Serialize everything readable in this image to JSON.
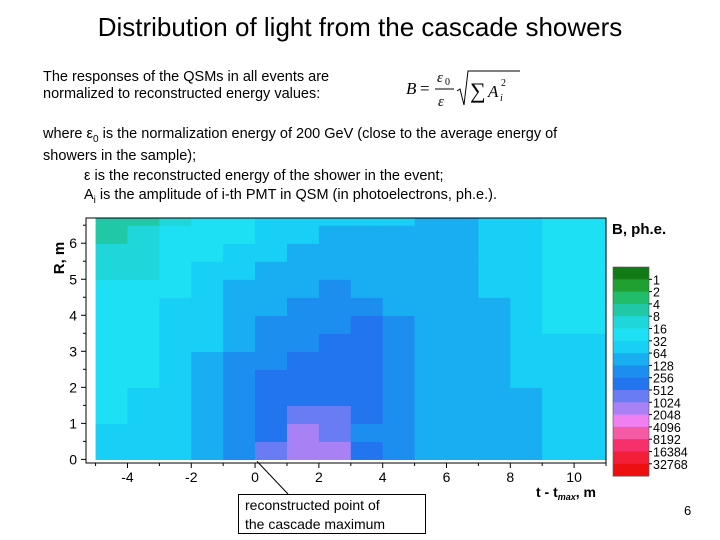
{
  "slide": {
    "title": "Distribution of light from the cascade showers",
    "intro_line1": "The responses of the QSMs in all events are",
    "intro_line2": "normalized to reconstructed energy values:",
    "formula": {
      "lhs": "B",
      "equals": "=",
      "numerator": "ε",
      "numerator_sub": "0",
      "denominator": "ε",
      "sum_symbol": "∑",
      "term": "A",
      "term_sub": "i",
      "term_sup": "2"
    },
    "where_line1_a": "where ε",
    "where_line1_sub": "0",
    "where_line1_b": " is the normalization energy of 200 GeV (close to the average energy of",
    "where_line2": "showers in the sample);",
    "epsilon_def": "ε is the reconstructed energy of the shower in the event;",
    "amp_def_a": "A",
    "amp_def_sub": "i",
    "amp_def_b": " is the amplitude of i-th PMT in QSM (in photoelectrons, ph.e.).",
    "callout_line1": "reconstructed point of",
    "callout_line2": "the cascade maximum",
    "page_number": "6"
  },
  "chart_data": {
    "type": "heatmap",
    "xlabel_a": "t - t",
    "xlabel_sub": "max",
    "xlabel_b": ", m",
    "ylabel": "R, m",
    "x_range": [
      -5.3,
      11.0
    ],
    "y_range": [
      -0.1,
      6.7
    ],
    "x_ticks": [
      -4,
      -2,
      0,
      2,
      4,
      6,
      8,
      10
    ],
    "y_ticks": [
      0,
      1,
      2,
      3,
      4,
      5,
      6
    ],
    "legend_title": "B, ph.e.",
    "legend_levels": [
      "1",
      "2",
      "4",
      "8",
      "16",
      "32",
      "64",
      "128",
      "256",
      "512",
      "1024",
      "2048",
      "4096",
      "8192",
      "16384",
      "32768"
    ],
    "colors": [
      "#127b17",
      "#20a030",
      "#22bd6a",
      "#20c8a8",
      "#1fd7da",
      "#1ee0f4",
      "#18cff5",
      "#19aef2",
      "#1c8ef0",
      "#2275ee",
      "#6a7cf3",
      "#a882f5",
      "#f080f2",
      "#f55aa5",
      "#f5306a",
      "#f21e37",
      "#ee1010"
    ],
    "x_cells": [
      -5.0,
      -4.0,
      -3.0,
      -2.0,
      -1.0,
      0.0,
      1.0,
      2.0,
      3.0,
      4.0,
      5.0,
      6.0,
      7.0,
      8.0,
      9.0,
      10.0
    ],
    "x_cell_width": 1.0,
    "y_cells": [
      0.0,
      0.5,
      1.0,
      1.5,
      2.0,
      2.5,
      3.0,
      3.5,
      4.0,
      4.5,
      5.0,
      5.5,
      6.0,
      6.5
    ],
    "y_cell_height": 0.5,
    "cell_levels": [
      [
        6,
        6,
        6,
        7,
        8,
        10,
        11,
        11,
        9,
        8,
        7,
        7,
        7,
        7,
        6,
        6
      ],
      [
        6,
        6,
        6,
        7,
        8,
        9,
        11,
        10,
        8,
        8,
        7,
        7,
        7,
        7,
        6,
        6
      ],
      [
        5,
        6,
        6,
        7,
        8,
        9,
        10,
        10,
        9,
        8,
        7,
        7,
        7,
        7,
        6,
        6
      ],
      [
        5,
        6,
        6,
        7,
        8,
        9,
        9,
        9,
        9,
        8,
        7,
        7,
        7,
        7,
        6,
        6
      ],
      [
        5,
        5,
        6,
        7,
        8,
        9,
        9,
        9,
        9,
        8,
        7,
        7,
        7,
        6,
        6,
        6
      ],
      [
        5,
        5,
        6,
        7,
        8,
        8,
        9,
        9,
        9,
        8,
        7,
        7,
        7,
        6,
        6,
        6
      ],
      [
        5,
        5,
        6,
        6,
        7,
        8,
        8,
        9,
        9,
        8,
        7,
        7,
        7,
        6,
        6,
        6
      ],
      [
        5,
        5,
        6,
        6,
        7,
        8,
        8,
        8,
        9,
        8,
        7,
        7,
        7,
        6,
        5,
        5
      ],
      [
        5,
        5,
        6,
        6,
        7,
        7,
        8,
        8,
        8,
        7,
        7,
        7,
        7,
        6,
        5,
        5
      ],
      [
        5,
        5,
        5,
        6,
        7,
        7,
        7,
        8,
        7,
        7,
        7,
        7,
        6,
        6,
        5,
        5
      ],
      [
        4,
        4,
        5,
        6,
        6,
        7,
        7,
        7,
        7,
        7,
        7,
        7,
        6,
        6,
        5,
        5
      ],
      [
        4,
        4,
        5,
        5,
        6,
        6,
        7,
        7,
        7,
        7,
        7,
        7,
        6,
        6,
        5,
        5
      ],
      [
        3,
        4,
        5,
        5,
        5,
        6,
        6,
        7,
        7,
        7,
        7,
        7,
        6,
        6,
        5,
        5
      ],
      [
        3,
        3,
        4,
        5,
        5,
        6,
        6,
        6,
        6,
        6,
        7,
        7,
        6,
        6,
        5,
        5
      ]
    ],
    "annotation_point": [
      0.0,
      0.0
    ]
  }
}
